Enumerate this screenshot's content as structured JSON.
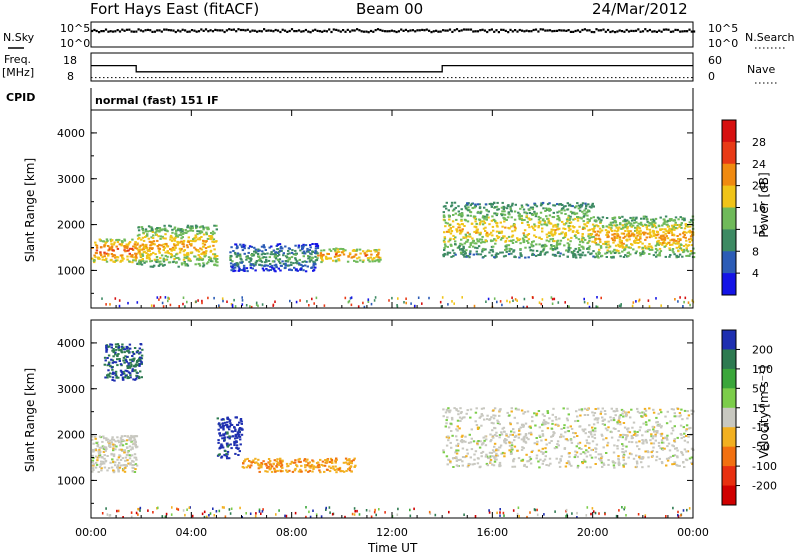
{
  "header": {
    "radar": "Fort Hays East (fitACF)",
    "beam": "Beam 00",
    "date": "24/Mar/2012"
  },
  "panels": {
    "sky": {
      "left_label": "N.Sky",
      "right_label": "N.Search",
      "left_ticks": [
        "10^5",
        "10^0"
      ],
      "right_ticks": [
        "10^5",
        "10^0"
      ]
    },
    "freq": {
      "left_label_1": "Freq.",
      "left_label_2": "[MHz]",
      "right_label": "Nave",
      "left_ticks": [
        "18",
        "8"
      ],
      "right_ticks": [
        "60",
        "0"
      ]
    },
    "cpid": {
      "label": "CPID",
      "text": "normal (fast) 151 IF"
    }
  },
  "power_panel": {
    "ylabel": "Slant Range [km]",
    "yticks": [
      "1000",
      "2000",
      "3000",
      "4000"
    ],
    "colorbar_label": "Power [dB]",
    "colorbar_ticks": [
      "4",
      "8",
      "12",
      "16",
      "20",
      "24",
      "28"
    ],
    "colorbar_colors": [
      "#1414e6",
      "#2c5cb6",
      "#3d8a63",
      "#6fba5a",
      "#f0c418",
      "#f08a10",
      "#e83a16",
      "#d61010"
    ]
  },
  "velocity_panel": {
    "ylabel": "Slant Range [km]",
    "yticks": [
      "1000",
      "2000",
      "3000",
      "4000"
    ],
    "colorbar_label": "Velocity [m s⁻¹]",
    "colorbar_ticks": [
      "200",
      "100",
      "50",
      "15",
      "-15",
      "-50",
      "-100",
      "-200"
    ],
    "colorbar_colors": [
      "#1e2fb0",
      "#2d7a50",
      "#3aa63a",
      "#7ccd4a",
      "#c8c8c0",
      "#f2b020",
      "#f27010",
      "#e83010",
      "#d00000"
    ]
  },
  "xaxis": {
    "label": "Time UT",
    "ticks": [
      "00:00",
      "04:00",
      "08:00",
      "12:00",
      "16:00",
      "20:00",
      "00:00"
    ]
  },
  "chart_data": [
    {
      "type": "line",
      "title": "N.Sky / N.Search",
      "x_unit": "hours UT",
      "xlim": [
        0,
        24
      ],
      "series": [
        {
          "name": "N.Sky",
          "x": [
            0,
            4,
            8,
            12,
            16,
            20,
            24
          ],
          "values": [
            5000,
            4800,
            4700,
            4600,
            4700,
            4800,
            5000
          ]
        }
      ]
    },
    {
      "type": "line",
      "title": "Freq. [MHz] / Nave",
      "x_unit": "hours UT",
      "xlim": [
        0,
        24
      ],
      "ylim_left": [
        8,
        18
      ],
      "ylim_right": [
        0,
        60
      ],
      "series": [
        {
          "name": "Freq.",
          "x": [
            0,
            1.8,
            1.8,
            14.0,
            14.0,
            24
          ],
          "values": [
            14,
            14,
            11.4,
            11.4,
            14,
            14
          ]
        },
        {
          "name": "Nave",
          "x": [
            0,
            24
          ],
          "values": [
            11,
            11
          ]
        }
      ]
    },
    {
      "type": "heatmap",
      "title": "Power [dB]",
      "x_unit": "hours UT",
      "xlim": [
        0,
        24
      ],
      "ylim": [
        180,
        4500
      ],
      "value_range": [
        0,
        30
      ],
      "regions": [
        {
          "t": [
            0.0,
            1.8
          ],
          "range": [
            1200,
            1700
          ],
          "value": 24
        },
        {
          "t": [
            1.8,
            5.0
          ],
          "range": [
            1100,
            2000
          ],
          "value": 20
        },
        {
          "t": [
            5.5,
            9.0
          ],
          "range": [
            1000,
            1600
          ],
          "value": 12
        },
        {
          "t": [
            9.0,
            11.5
          ],
          "range": [
            1200,
            1500
          ],
          "value": 22
        },
        {
          "t": [
            14.0,
            20.0
          ],
          "range": [
            1300,
            2500
          ],
          "value": 18
        },
        {
          "t": [
            20.0,
            24.0
          ],
          "range": [
            1300,
            2200
          ],
          "value": 20
        }
      ]
    },
    {
      "type": "heatmap",
      "title": "Velocity [m s⁻¹]",
      "x_unit": "hours UT",
      "xlim": [
        0,
        24
      ],
      "ylim": [
        180,
        4500
      ],
      "value_range": [
        -200,
        200
      ],
      "regions": [
        {
          "t": [
            0.0,
            1.8
          ],
          "range": [
            1200,
            2000
          ],
          "value": 0
        },
        {
          "t": [
            0.5,
            2.0
          ],
          "range": [
            3200,
            4000
          ],
          "value": 150
        },
        {
          "t": [
            5.0,
            6.0
          ],
          "range": [
            1500,
            2400
          ],
          "value": 180
        },
        {
          "t": [
            6.0,
            10.5
          ],
          "range": [
            1200,
            1500
          ],
          "value": -60
        },
        {
          "t": [
            14.0,
            24.0
          ],
          "range": [
            1300,
            2600
          ],
          "value": 0
        }
      ]
    }
  ]
}
